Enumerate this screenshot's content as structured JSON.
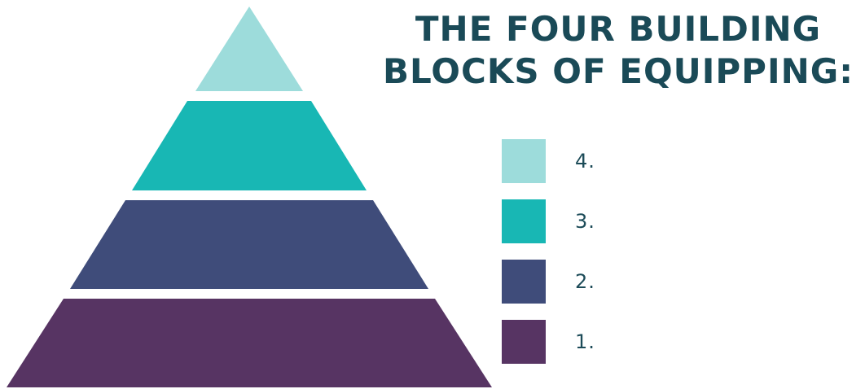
{
  "title": {
    "line1": "THE FOUR BUILDING",
    "line2": "BLOCKS OF EQUIPPING:"
  },
  "pyramid": {
    "levels": [
      {
        "label": "4.",
        "color": "#9ddcdb"
      },
      {
        "label": "3.",
        "color": "#18b7b4"
      },
      {
        "label": "2.",
        "color": "#3f4c7a"
      },
      {
        "label": "1.",
        "color": "#573463"
      }
    ]
  },
  "colors": {
    "title_text": "#1a4a57",
    "legend_text": "#1c4b58",
    "background": "#ffffff"
  }
}
